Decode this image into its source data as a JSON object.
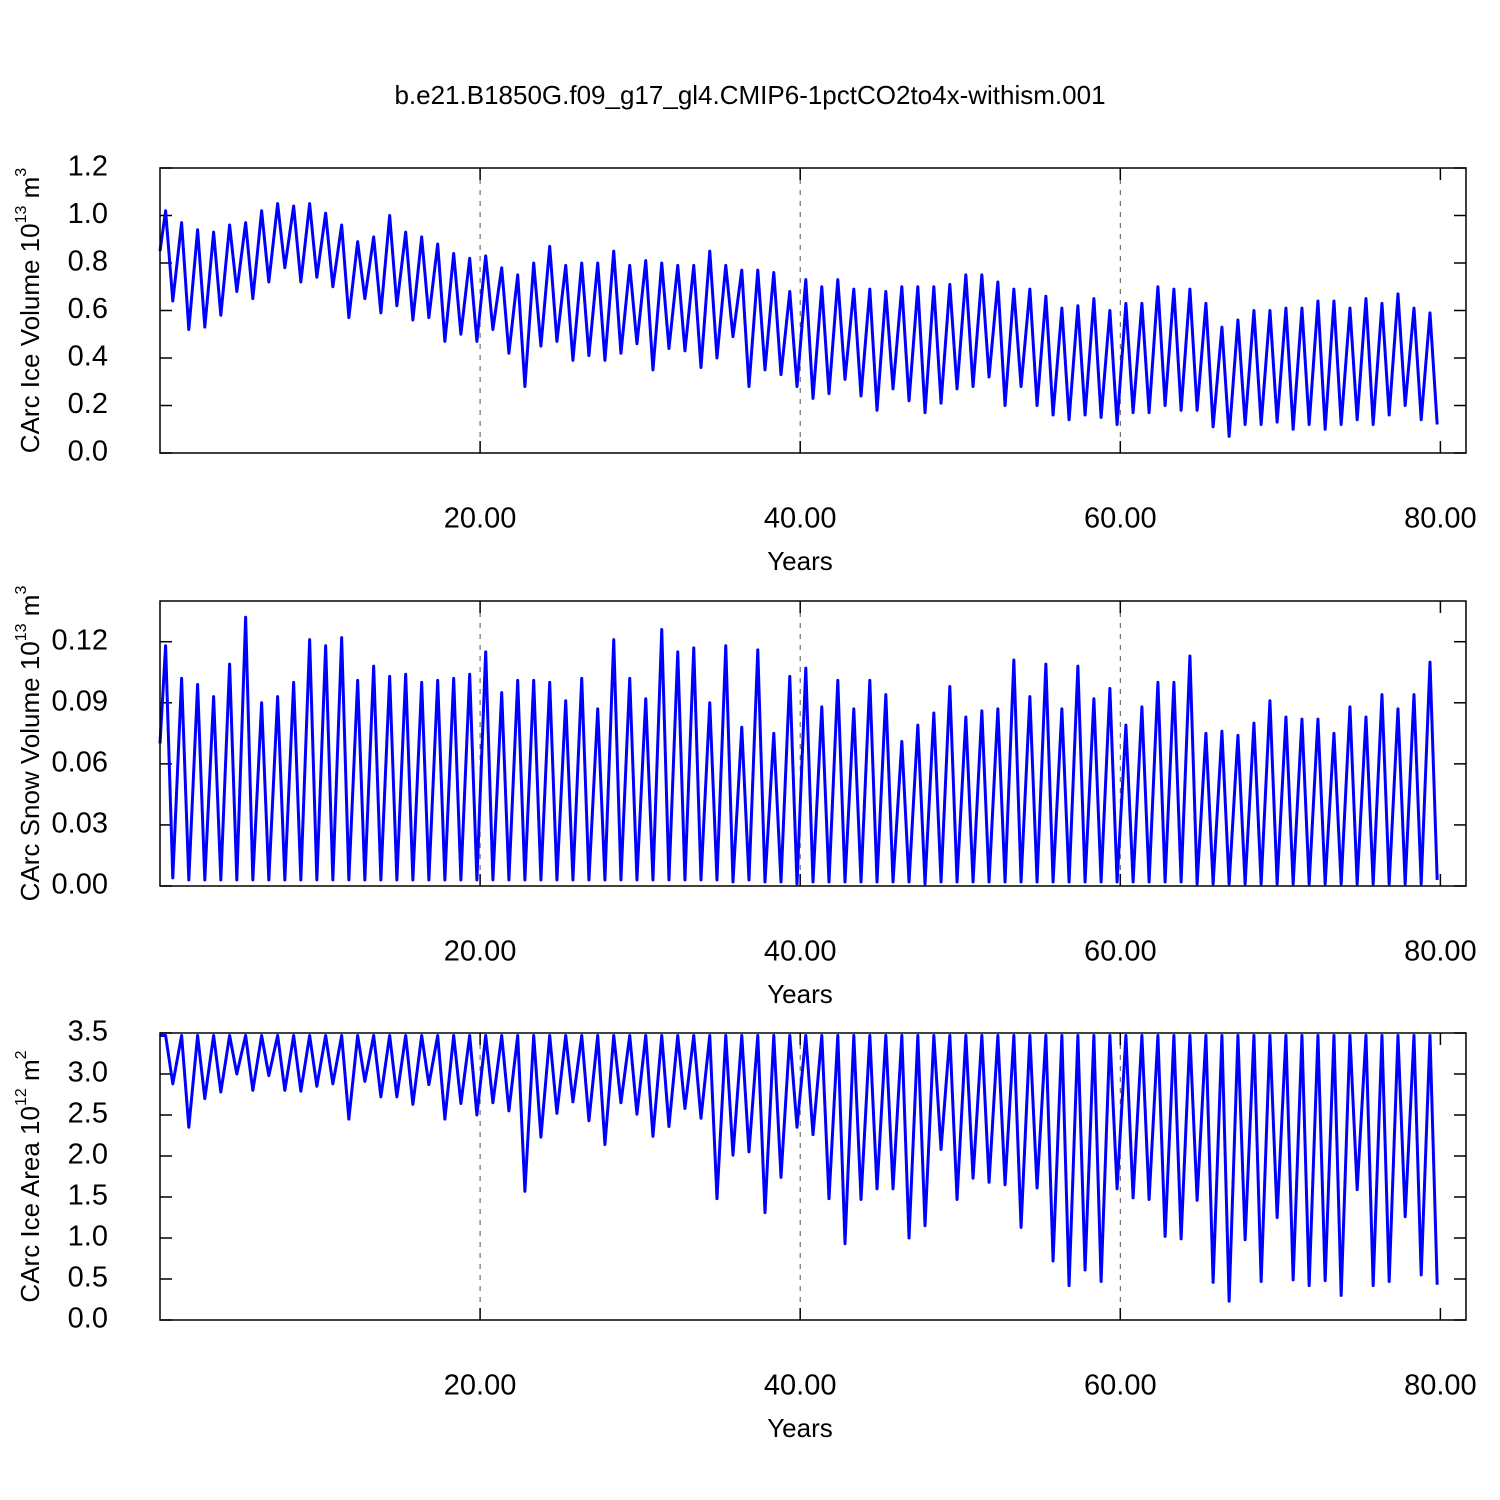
{
  "chart_data": [
    {
      "type": "line",
      "title": "b.e21.B1850G.f09_g17_gl4.CMIP6-1pctCO2to4x-withism.001",
      "xlabel": "Years",
      "ylabel": [
        "CArc Ice Volume 10",
        "13",
        " m",
        "3"
      ],
      "xlim": [
        0,
        81.6
      ],
      "xticks": [
        {
          "value": 20,
          "label": "20.00"
        },
        {
          "value": 40,
          "label": "40.00"
        },
        {
          "value": 60,
          "label": "60.00"
        },
        {
          "value": 80,
          "label": "80.00"
        }
      ],
      "ylim": [
        0,
        1.2
      ],
      "yticks": [
        {
          "value": 0,
          "label": "0.0"
        },
        0.2,
        0.4,
        0.6,
        0.8,
        {
          "value": 1,
          "label": "1.0"
        },
        1.2
      ],
      "grid": true,
      "color": "#0000ff",
      "x": [
        0,
        0.35,
        0.8,
        1.35,
        1.8,
        2.35,
        2.8,
        3.35,
        3.8,
        4.35,
        4.8,
        5.35,
        5.8,
        6.35,
        6.8,
        7.35,
        7.8,
        8.35,
        8.8,
        9.35,
        9.8,
        10.35,
        10.8,
        11.35,
        11.8,
        12.35,
        12.8,
        13.35,
        13.8,
        14.35,
        14.8,
        15.35,
        15.8,
        16.35,
        16.8,
        17.35,
        17.8,
        18.35,
        18.8,
        19.35,
        19.8,
        20.35,
        20.8,
        21.35,
        21.8,
        22.35,
        22.8,
        23.35,
        23.8,
        24.35,
        24.8,
        25.35,
        25.8,
        26.35,
        26.8,
        27.35,
        27.8,
        28.35,
        28.8,
        29.35,
        29.8,
        30.35,
        30.8,
        31.35,
        31.8,
        32.35,
        32.8,
        33.35,
        33.8,
        34.35,
        34.8,
        35.35,
        35.8,
        36.35,
        36.8,
        37.35,
        37.8,
        38.35,
        38.8,
        39.35,
        39.8,
        40.35,
        40.8,
        41.35,
        41.8,
        42.35,
        42.8,
        43.35,
        43.8,
        44.35,
        44.8,
        45.35,
        45.8,
        46.35,
        46.8,
        47.35,
        47.8,
        48.35,
        48.8,
        49.35,
        49.8,
        50.35,
        50.8,
        51.35,
        51.8,
        52.35,
        52.8,
        53.35,
        53.8,
        54.35,
        54.8,
        55.35,
        55.8,
        56.35,
        56.8,
        57.35,
        57.8,
        58.35,
        58.8,
        59.35,
        59.8,
        60.35,
        60.8,
        61.35,
        61.8,
        62.35,
        62.8,
        63.35,
        63.8,
        64.35,
        64.8,
        65.35,
        65.8,
        66.35,
        66.8,
        67.35,
        67.8,
        68.35,
        68.8,
        69.35,
        69.8,
        70.35,
        70.8,
        71.35,
        71.8,
        72.35,
        72.8,
        73.35,
        73.8,
        74.35,
        74.8,
        75.35,
        75.8,
        76.35,
        76.8,
        77.35,
        77.8,
        78.35,
        78.8,
        79.35,
        79.8
      ],
      "values": [
        0.85,
        1.02,
        0.64,
        0.97,
        0.52,
        0.94,
        0.53,
        0.93,
        0.58,
        0.96,
        0.68,
        0.97,
        0.65,
        1.02,
        0.72,
        1.05,
        0.78,
        1.04,
        0.72,
        1.05,
        0.74,
        1.01,
        0.7,
        0.96,
        0.57,
        0.89,
        0.65,
        0.91,
        0.59,
        1.0,
        0.62,
        0.93,
        0.56,
        0.91,
        0.57,
        0.88,
        0.47,
        0.84,
        0.5,
        0.82,
        0.47,
        0.83,
        0.52,
        0.78,
        0.42,
        0.75,
        0.28,
        0.8,
        0.45,
        0.87,
        0.47,
        0.79,
        0.39,
        0.8,
        0.41,
        0.8,
        0.39,
        0.85,
        0.42,
        0.79,
        0.46,
        0.81,
        0.35,
        0.8,
        0.44,
        0.79,
        0.43,
        0.79,
        0.36,
        0.85,
        0.4,
        0.79,
        0.49,
        0.77,
        0.28,
        0.77,
        0.35,
        0.76,
        0.33,
        0.68,
        0.28,
        0.73,
        0.23,
        0.7,
        0.25,
        0.73,
        0.31,
        0.69,
        0.24,
        0.69,
        0.18,
        0.68,
        0.27,
        0.7,
        0.22,
        0.7,
        0.17,
        0.7,
        0.21,
        0.71,
        0.27,
        0.75,
        0.28,
        0.75,
        0.32,
        0.72,
        0.2,
        0.69,
        0.28,
        0.69,
        0.2,
        0.66,
        0.16,
        0.61,
        0.14,
        0.62,
        0.16,
        0.65,
        0.15,
        0.6,
        0.12,
        0.63,
        0.17,
        0.63,
        0.17,
        0.7,
        0.2,
        0.69,
        0.18,
        0.69,
        0.18,
        0.63,
        0.11,
        0.53,
        0.07,
        0.56,
        0.12,
        0.6,
        0.12,
        0.6,
        0.13,
        0.61,
        0.1,
        0.61,
        0.12,
        0.64,
        0.1,
        0.64,
        0.12,
        0.61,
        0.14,
        0.65,
        0.12,
        0.63,
        0.16,
        0.67,
        0.2,
        0.61,
        0.14,
        0.59,
        0.12
      ]
    },
    {
      "type": "line",
      "xlabel": "Years",
      "ylabel": [
        "CArc Snow Volume 10",
        "13",
        " m",
        "3"
      ],
      "xlim": [
        0,
        81.6
      ],
      "xticks": [
        {
          "value": 20,
          "label": "20.00"
        },
        {
          "value": 40,
          "label": "40.00"
        },
        {
          "value": 60,
          "label": "60.00"
        },
        {
          "value": 80,
          "label": "80.00"
        }
      ],
      "ylim": [
        0,
        0.14
      ],
      "yticks": [
        {
          "value": 0,
          "label": "0.00"
        },
        0.03,
        0.06,
        0.09,
        {
          "value": 0.12,
          "label": "0.12"
        }
      ],
      "grid": true,
      "color": "#0000ff",
      "x": [
        0,
        0.35,
        0.8,
        1.35,
        1.8,
        2.35,
        2.8,
        3.35,
        3.8,
        4.35,
        4.8,
        5.35,
        5.8,
        6.35,
        6.8,
        7.35,
        7.8,
        8.35,
        8.8,
        9.35,
        9.8,
        10.35,
        10.8,
        11.35,
        11.8,
        12.35,
        12.8,
        13.35,
        13.8,
        14.35,
        14.8,
        15.35,
        15.8,
        16.35,
        16.8,
        17.35,
        17.8,
        18.35,
        18.8,
        19.35,
        19.8,
        20.35,
        20.8,
        21.35,
        21.8,
        22.35,
        22.8,
        23.35,
        23.8,
        24.35,
        24.8,
        25.35,
        25.8,
        26.35,
        26.8,
        27.35,
        27.8,
        28.35,
        28.8,
        29.35,
        29.8,
        30.35,
        30.8,
        31.35,
        31.8,
        32.35,
        32.8,
        33.35,
        33.8,
        34.35,
        34.8,
        35.35,
        35.8,
        36.35,
        36.8,
        37.35,
        37.8,
        38.35,
        38.8,
        39.35,
        39.8,
        40.35,
        40.8,
        41.35,
        41.8,
        42.35,
        42.8,
        43.35,
        43.8,
        44.35,
        44.8,
        45.35,
        45.8,
        46.35,
        46.8,
        47.35,
        47.8,
        48.35,
        48.8,
        49.35,
        49.8,
        50.35,
        50.8,
        51.35,
        51.8,
        52.35,
        52.8,
        53.35,
        53.8,
        54.35,
        54.8,
        55.35,
        55.8,
        56.35,
        56.8,
        57.35,
        57.8,
        58.35,
        58.8,
        59.35,
        59.8,
        60.35,
        60.8,
        61.35,
        61.8,
        62.35,
        62.8,
        63.35,
        63.8,
        64.35,
        64.8,
        65.35,
        65.8,
        66.35,
        66.8,
        67.35,
        67.8,
        68.35,
        68.8,
        69.35,
        69.8,
        70.35,
        70.8,
        71.35,
        71.8,
        72.35,
        72.8,
        73.35,
        73.8,
        74.35,
        74.8,
        75.35,
        75.8,
        76.35,
        76.8,
        77.35,
        77.8,
        78.35,
        78.8,
        79.35,
        79.8
      ],
      "values": [
        0.07,
        0.118,
        0.004,
        0.102,
        0.003,
        0.099,
        0.003,
        0.093,
        0.003,
        0.109,
        0.003,
        0.132,
        0.003,
        0.09,
        0.003,
        0.093,
        0.003,
        0.1,
        0.003,
        0.121,
        0.003,
        0.118,
        0.003,
        0.122,
        0.003,
        0.101,
        0.003,
        0.108,
        0.003,
        0.103,
        0.003,
        0.104,
        0.003,
        0.1,
        0.003,
        0.101,
        0.003,
        0.102,
        0.003,
        0.104,
        0.003,
        0.115,
        0.003,
        0.095,
        0.003,
        0.101,
        0.003,
        0.101,
        0.003,
        0.1,
        0.003,
        0.091,
        0.003,
        0.102,
        0.003,
        0.087,
        0.003,
        0.121,
        0.003,
        0.102,
        0.003,
        0.092,
        0.003,
        0.126,
        0.003,
        0.115,
        0.003,
        0.117,
        0.003,
        0.09,
        0.003,
        0.118,
        0.002,
        0.078,
        0.003,
        0.116,
        0.002,
        0.075,
        0.002,
        0.103,
        0.001,
        0.107,
        0.002,
        0.088,
        0.002,
        0.101,
        0.002,
        0.087,
        0.002,
        0.101,
        0.002,
        0.094,
        0.002,
        0.071,
        0.002,
        0.079,
        0.001,
        0.085,
        0.002,
        0.098,
        0.002,
        0.083,
        0.002,
        0.086,
        0.002,
        0.087,
        0.002,
        0.111,
        0.002,
        0.093,
        0.002,
        0.109,
        0.002,
        0.087,
        0.002,
        0.108,
        0.002,
        0.092,
        0.002,
        0.097,
        0.002,
        0.079,
        0.002,
        0.088,
        0.002,
        0.1,
        0.002,
        0.1,
        0.002,
        0.113,
        0.001,
        0.075,
        0.001,
        0.076,
        0.001,
        0.074,
        0.001,
        0.08,
        0.001,
        0.091,
        0.001,
        0.083,
        0.001,
        0.082,
        0.001,
        0.082,
        0.001,
        0.075,
        0.001,
        0.088,
        0.001,
        0.083,
        0.001,
        0.094,
        0.001,
        0.087,
        0.001,
        0.094,
        0.001,
        0.11,
        0.003
      ]
    },
    {
      "type": "line",
      "xlabel": "Years",
      "ylabel": [
        "CArc Ice Area 10",
        "12",
        " m",
        "2"
      ],
      "xlim": [
        0,
        81.6
      ],
      "xticks": [
        {
          "value": 20,
          "label": "20.00"
        },
        {
          "value": 40,
          "label": "40.00"
        },
        {
          "value": 60,
          "label": "60.00"
        },
        {
          "value": 80,
          "label": "80.00"
        }
      ],
      "ylim": [
        0,
        3.5
      ],
      "yticks": [
        {
          "value": 0,
          "label": "0.0"
        },
        0.5,
        {
          "value": 1,
          "label": "1.0"
        },
        1.5,
        {
          "value": 2,
          "label": "2.0"
        },
        2.5,
        {
          "value": 3,
          "label": "3.0"
        },
        3.5
      ],
      "grid": true,
      "color": "#0000ff",
      "x": [
        0,
        0.35,
        0.8,
        1.35,
        1.8,
        2.35,
        2.8,
        3.35,
        3.8,
        4.35,
        4.8,
        5.35,
        5.8,
        6.35,
        6.8,
        7.35,
        7.8,
        8.35,
        8.8,
        9.35,
        9.8,
        10.35,
        10.8,
        11.35,
        11.8,
        12.35,
        12.8,
        13.35,
        13.8,
        14.35,
        14.8,
        15.35,
        15.8,
        16.35,
        16.8,
        17.35,
        17.8,
        18.35,
        18.8,
        19.35,
        19.8,
        20.35,
        20.8,
        21.35,
        21.8,
        22.35,
        22.8,
        23.35,
        23.8,
        24.35,
        24.8,
        25.35,
        25.8,
        26.35,
        26.8,
        27.35,
        27.8,
        28.35,
        28.8,
        29.35,
        29.8,
        30.35,
        30.8,
        31.35,
        31.8,
        32.35,
        32.8,
        33.35,
        33.8,
        34.35,
        34.8,
        35.35,
        35.8,
        36.35,
        36.8,
        37.35,
        37.8,
        38.35,
        38.8,
        39.35,
        39.8,
        40.35,
        40.8,
        41.35,
        41.8,
        42.35,
        42.8,
        43.35,
        43.8,
        44.35,
        44.8,
        45.35,
        45.8,
        46.35,
        46.8,
        47.35,
        47.8,
        48.35,
        48.8,
        49.35,
        49.8,
        50.35,
        50.8,
        51.35,
        51.8,
        52.35,
        52.8,
        53.35,
        53.8,
        54.35,
        54.8,
        55.35,
        55.8,
        56.35,
        56.8,
        57.35,
        57.8,
        58.35,
        58.8,
        59.35,
        59.8,
        60.35,
        60.8,
        61.35,
        61.8,
        62.35,
        62.8,
        63.35,
        63.8,
        64.35,
        64.8,
        65.35,
        65.8,
        66.35,
        66.8,
        67.35,
        67.8,
        68.35,
        68.8,
        69.35,
        69.8,
        70.35,
        70.8,
        71.35,
        71.8,
        72.35,
        72.8,
        73.35,
        73.8,
        74.35,
        74.8,
        75.35,
        75.8,
        76.35,
        76.8,
        77.35,
        77.8,
        78.35,
        78.8,
        79.35,
        79.8
      ],
      "values": [
        3.47,
        3.47,
        2.88,
        3.47,
        2.35,
        3.47,
        2.7,
        3.47,
        2.78,
        3.47,
        3.0,
        3.47,
        2.8,
        3.47,
        2.98,
        3.47,
        2.8,
        3.47,
        2.79,
        3.47,
        2.85,
        3.47,
        2.88,
        3.47,
        2.45,
        3.47,
        2.91,
        3.47,
        2.72,
        3.47,
        2.72,
        3.47,
        2.63,
        3.47,
        2.87,
        3.47,
        2.45,
        3.47,
        2.64,
        3.47,
        2.5,
        3.47,
        2.65,
        3.47,
        2.55,
        3.47,
        1.57,
        3.47,
        2.23,
        3.47,
        2.52,
        3.47,
        2.66,
        3.47,
        2.43,
        3.47,
        2.14,
        3.47,
        2.65,
        3.47,
        2.51,
        3.47,
        2.24,
        3.47,
        2.36,
        3.47,
        2.58,
        3.47,
        2.46,
        3.47,
        1.48,
        3.47,
        2.01,
        3.47,
        2.05,
        3.47,
        1.31,
        3.47,
        1.74,
        3.47,
        2.35,
        3.47,
        2.26,
        3.47,
        1.48,
        3.47,
        0.93,
        3.47,
        1.47,
        3.47,
        1.6,
        3.47,
        1.6,
        3.47,
        1.0,
        3.47,
        1.15,
        3.47,
        2.08,
        3.47,
        1.47,
        3.47,
        1.73,
        3.47,
        1.68,
        3.47,
        1.65,
        3.47,
        1.13,
        3.47,
        1.61,
        3.47,
        0.72,
        3.47,
        0.42,
        3.47,
        0.61,
        3.47,
        0.47,
        3.47,
        1.6,
        3.47,
        1.49,
        3.47,
        1.47,
        3.47,
        1.02,
        3.47,
        0.99,
        3.47,
        1.46,
        3.47,
        0.46,
        3.47,
        0.23,
        3.47,
        0.98,
        3.47,
        0.47,
        3.47,
        1.25,
        3.47,
        0.49,
        3.47,
        0.42,
        3.47,
        0.48,
        3.47,
        0.3,
        3.47,
        1.59,
        3.47,
        0.42,
        3.47,
        0.47,
        3.47,
        1.26,
        3.47,
        0.55,
        3.47,
        0.43
      ]
    }
  ]
}
